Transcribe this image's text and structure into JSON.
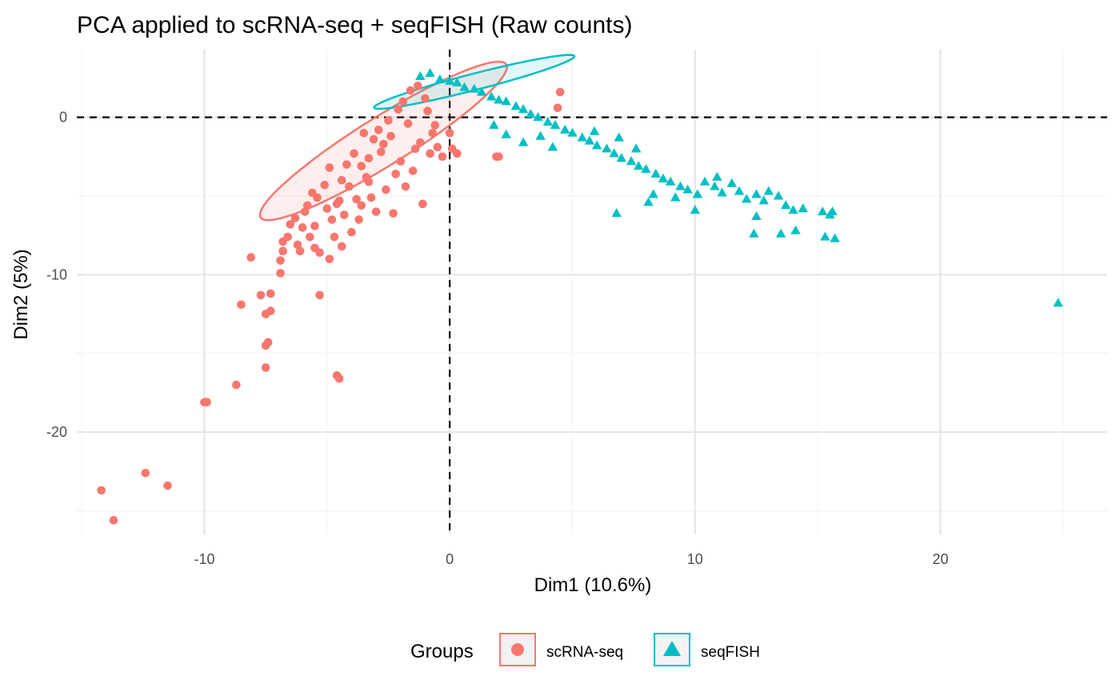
{
  "chart_data": {
    "type": "scatter",
    "title": "PCA applied to scRNA-seq + seqFISH (Raw counts)",
    "xlabel": "Dim1 (10.6%)",
    "ylabel": "Dim2 (5%)",
    "xlim": [
      -15.2,
      26.8
    ],
    "ylim": [
      -26.5,
      4.3
    ],
    "x_ticks": [
      -10,
      0,
      10,
      20
    ],
    "y_ticks": [
      -20,
      -10,
      0
    ],
    "x_tick_labels": [
      "-10",
      "0",
      "10",
      "20"
    ],
    "y_tick_labels": [
      "-20",
      "-10",
      "0"
    ],
    "grid": true,
    "reference_lines": {
      "x": 0,
      "y": 0,
      "style": "dashed"
    },
    "legend": {
      "title": "Groups",
      "position": "bottom",
      "entries": [
        "scRNA-seq",
        "seqFISH"
      ]
    },
    "colors": {
      "scRNA-seq": "#F8766D",
      "seqFISH": "#00BFC4"
    },
    "series": [
      {
        "name": "scRNA-seq",
        "marker": "circle",
        "ellipse": {
          "cx": -2.7,
          "cy": -1.5,
          "rx": 1.3,
          "ry": 7.0,
          "rotation_deg": -45
        },
        "points": [
          [
            -14.2,
            -23.7
          ],
          [
            -13.7,
            -25.6
          ],
          [
            -12.4,
            -22.6
          ],
          [
            -11.5,
            -23.4
          ],
          [
            -10.0,
            -18.1
          ],
          [
            -9.9,
            -18.1
          ],
          [
            -8.7,
            -17.0
          ],
          [
            -8.5,
            -11.9
          ],
          [
            -8.1,
            -8.9
          ],
          [
            -7.7,
            -11.3
          ],
          [
            -7.5,
            -12.5
          ],
          [
            -7.5,
            -14.5
          ],
          [
            -7.4,
            -14.3
          ],
          [
            -7.5,
            -15.9
          ],
          [
            -7.3,
            -12.3
          ],
          [
            -7.3,
            -11.2
          ],
          [
            -6.9,
            -9.9
          ],
          [
            -6.9,
            -9.1
          ],
          [
            -6.8,
            -8.5
          ],
          [
            -6.8,
            -7.9
          ],
          [
            -6.6,
            -7.6
          ],
          [
            -6.5,
            -6.8
          ],
          [
            -6.2,
            -8.1
          ],
          [
            -6.3,
            -6.4
          ],
          [
            -6.1,
            -8.5
          ],
          [
            -6.0,
            -7.0
          ],
          [
            -5.9,
            -6.0
          ],
          [
            -5.8,
            -5.6
          ],
          [
            -5.7,
            -7.6
          ],
          [
            -5.5,
            -8.3
          ],
          [
            -5.5,
            -6.9
          ],
          [
            -5.4,
            -5.1
          ],
          [
            -5.3,
            -8.6
          ],
          [
            -5.3,
            -11.3
          ],
          [
            -5.1,
            -4.3
          ],
          [
            -5.0,
            -5.8
          ],
          [
            -4.9,
            -3.2
          ],
          [
            -4.9,
            -9.0
          ],
          [
            -4.8,
            -6.5
          ],
          [
            -4.7,
            -7.6
          ],
          [
            -4.6,
            -16.4
          ],
          [
            -4.5,
            -16.6
          ],
          [
            -4.5,
            -5.3
          ],
          [
            -4.4,
            -8.2
          ],
          [
            -4.3,
            -6.2
          ],
          [
            -4.2,
            -3.0
          ],
          [
            -4.0,
            -7.3
          ],
          [
            -3.8,
            -5.2
          ],
          [
            -3.7,
            -6.5
          ],
          [
            -3.5,
            -1.0
          ],
          [
            -3.4,
            -3.8
          ],
          [
            -3.2,
            -5.1
          ],
          [
            -3.0,
            -6.0
          ],
          [
            -2.8,
            -2.2
          ],
          [
            -2.6,
            -4.6
          ],
          [
            -2.3,
            -6.1
          ],
          [
            -2.2,
            -3.6
          ],
          [
            -2.0,
            -2.8
          ],
          [
            -1.8,
            -4.4
          ],
          [
            -1.7,
            -0.4
          ],
          [
            -1.5,
            -3.4
          ],
          [
            -1.4,
            -2.0
          ],
          [
            -1.2,
            -1.6
          ],
          [
            -1.1,
            -5.5
          ],
          [
            -0.9,
            0.4
          ],
          [
            -0.8,
            -2.3
          ],
          [
            -0.7,
            -1.0
          ],
          [
            -0.6,
            -0.5
          ],
          [
            -0.5,
            -1.9
          ],
          [
            -0.3,
            -2.5
          ],
          [
            0.0,
            -1.0
          ],
          [
            0.1,
            -2.0
          ],
          [
            0.3,
            -2.3
          ],
          [
            1.9,
            -2.5
          ],
          [
            2.0,
            -2.5
          ],
          [
            4.5,
            1.6
          ],
          [
            4.4,
            0.6
          ],
          [
            -5.6,
            -4.8
          ],
          [
            -4.1,
            -4.4
          ],
          [
            -3.9,
            -2.3
          ],
          [
            -3.6,
            -3.1
          ],
          [
            -3.3,
            -2.6
          ],
          [
            -3.1,
            -1.4
          ],
          [
            -2.9,
            -0.8
          ],
          [
            -2.7,
            -1.7
          ],
          [
            -2.5,
            -0.2
          ],
          [
            -2.4,
            -1.2
          ],
          [
            -2.1,
            0.5
          ],
          [
            -1.9,
            1.0
          ],
          [
            -1.6,
            1.7
          ],
          [
            -1.3,
            2.0
          ],
          [
            -1.0,
            1.2
          ],
          [
            -3.3,
            -4.1
          ],
          [
            -3.6,
            -5.6
          ],
          [
            -4.4,
            -4.0
          ],
          [
            -4.6,
            -5.5
          ]
        ]
      },
      {
        "name": "seqFISH",
        "marker": "triangle",
        "ellipse": {
          "cx": 1.0,
          "cy": 2.25,
          "rx": 4.4,
          "ry": 0.5,
          "rotation_deg": 22
        },
        "points": [
          [
            -1.2,
            2.6
          ],
          [
            -0.8,
            2.8
          ],
          [
            -0.4,
            2.4
          ],
          [
            0.0,
            2.3
          ],
          [
            0.3,
            2.2
          ],
          [
            0.6,
            1.9
          ],
          [
            1.0,
            1.8
          ],
          [
            1.3,
            1.6
          ],
          [
            1.7,
            1.3
          ],
          [
            2.0,
            1.1
          ],
          [
            2.3,
            1.0
          ],
          [
            2.7,
            0.7
          ],
          [
            3.0,
            0.5
          ],
          [
            3.3,
            0.2
          ],
          [
            3.6,
            0.0
          ],
          [
            4.0,
            -0.3
          ],
          [
            4.3,
            -0.5
          ],
          [
            4.7,
            -0.8
          ],
          [
            5.0,
            -1.0
          ],
          [
            5.4,
            -1.3
          ],
          [
            5.7,
            -1.5
          ],
          [
            6.0,
            -1.8
          ],
          [
            6.4,
            -2.0
          ],
          [
            6.7,
            -2.3
          ],
          [
            7.0,
            -2.6
          ],
          [
            7.4,
            -2.8
          ],
          [
            7.7,
            -3.1
          ],
          [
            8.0,
            -3.3
          ],
          [
            8.4,
            -3.6
          ],
          [
            8.7,
            -3.9
          ],
          [
            9.0,
            -4.1
          ],
          [
            9.4,
            -4.4
          ],
          [
            9.7,
            -4.6
          ],
          [
            10.1,
            -4.9
          ],
          [
            10.4,
            -4.1
          ],
          [
            10.8,
            -4.4
          ],
          [
            11.1,
            -4.8
          ],
          [
            11.5,
            -4.2
          ],
          [
            11.8,
            -4.7
          ],
          [
            12.1,
            -5.2
          ],
          [
            12.5,
            -4.9
          ],
          [
            12.8,
            -5.3
          ],
          [
            13.0,
            -4.7
          ],
          [
            13.4,
            -5.0
          ],
          [
            13.7,
            -5.6
          ],
          [
            14.0,
            -5.9
          ],
          [
            14.4,
            -5.8
          ],
          [
            15.2,
            -6.0
          ],
          [
            15.5,
            -6.2
          ],
          [
            15.6,
            -6.0
          ],
          [
            15.3,
            -7.6
          ],
          [
            15.7,
            -7.7
          ],
          [
            14.1,
            -7.2
          ],
          [
            13.5,
            -7.4
          ],
          [
            12.4,
            -7.4
          ],
          [
            12.5,
            -6.3
          ],
          [
            10.0,
            -5.9
          ],
          [
            8.1,
            -5.4
          ],
          [
            6.8,
            -6.1
          ],
          [
            4.2,
            -1.9
          ],
          [
            3.7,
            -1.2
          ],
          [
            3.0,
            -1.6
          ],
          [
            2.3,
            -1.1
          ],
          [
            1.8,
            -0.5
          ],
          [
            8.3,
            -4.9
          ],
          [
            9.2,
            -5.1
          ],
          [
            10.9,
            -3.8
          ],
          [
            7.6,
            -2.0
          ],
          [
            6.9,
            -1.3
          ],
          [
            5.9,
            -0.9
          ],
          [
            24.8,
            -11.8
          ]
        ]
      }
    ]
  }
}
